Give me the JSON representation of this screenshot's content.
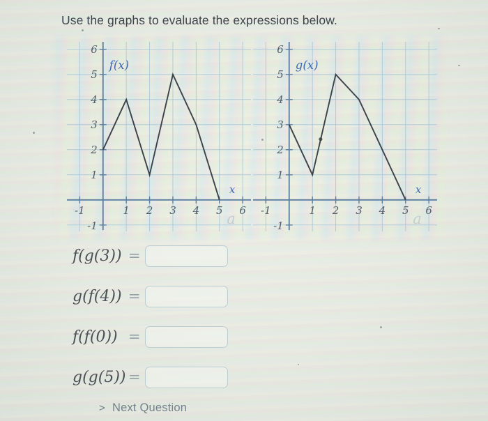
{
  "title": "Use the graphs to evaluate the expressions below.",
  "chart_data": [
    {
      "type": "line",
      "name": "f",
      "label": "f(x)",
      "xlabel": "x",
      "points": [
        [
          0,
          2
        ],
        [
          1,
          4
        ],
        [
          2,
          1
        ],
        [
          3,
          5
        ],
        [
          4,
          3
        ],
        [
          5,
          0
        ]
      ],
      "xlim": [
        -1,
        6
      ],
      "ylim": [
        -1,
        6
      ],
      "x_tick_labels": [
        -1,
        1,
        2,
        3,
        4,
        5,
        6
      ],
      "y_tick_labels": [
        1,
        2,
        3,
        4,
        5,
        6
      ],
      "y_neg_label": "-1",
      "grid": true,
      "legend_position": "none",
      "watermark": true
    },
    {
      "type": "line",
      "name": "g",
      "label": "g(x)",
      "xlabel": "x",
      "points": [
        [
          0,
          3
        ],
        [
          1,
          1
        ],
        [
          2,
          5
        ],
        [
          3,
          4
        ],
        [
          5,
          0
        ]
      ],
      "xlim": [
        -1,
        6
      ],
      "ylim": [
        -1,
        6
      ],
      "x_tick_labels": [
        -1,
        1,
        2,
        3,
        4,
        5,
        6
      ],
      "y_tick_labels": [
        1,
        2,
        3,
        4,
        5,
        6
      ],
      "y_neg_label": "-1",
      "grid": true,
      "legend_position": "none",
      "watermark": true,
      "artifact_dot": [
        1.35,
        2.42
      ]
    }
  ],
  "expressions": [
    {
      "label": "f(g(3))",
      "equals": "=",
      "value": ""
    },
    {
      "label": "g(f(4))",
      "equals": "=",
      "value": ""
    },
    {
      "label": "f(f(0))",
      "equals": "=",
      "value": ""
    },
    {
      "label": "g(g(5))",
      "equals": "=",
      "value": ""
    }
  ],
  "next": {
    "chevron": ">",
    "label": "Next Question"
  },
  "watermark_glyph": "a",
  "colors": {
    "grid": "#a3c4d9",
    "axis": "#5b7da0",
    "curve": "#3b4249",
    "tick_label": "#515e68",
    "fn_label": "#3e68ae",
    "watermark": "#9db4c4"
  }
}
